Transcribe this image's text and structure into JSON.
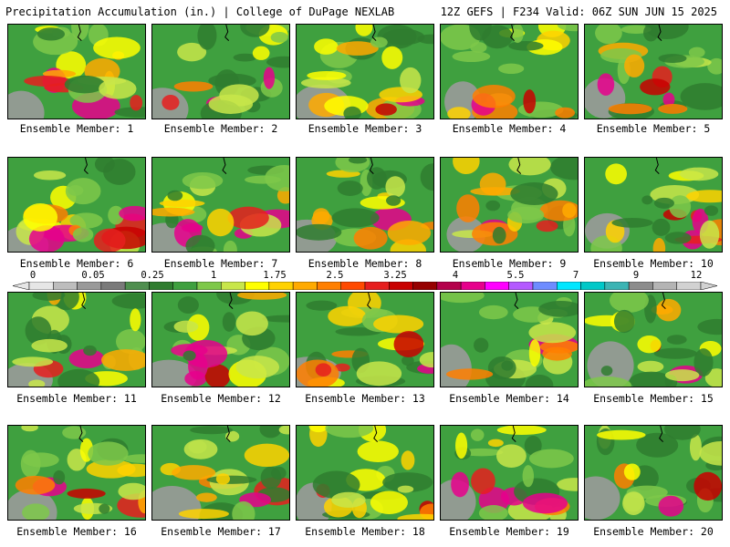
{
  "header": {
    "left_title": "Precipitation Accumulation (in.) | College of DuPage NEXLAB",
    "right_title": "12Z GEFS | F234 Valid: 06Z SUN JUN 15 2025"
  },
  "legend": {
    "tick_labels": [
      "0",
      "0.05",
      "0.25",
      "1",
      "1.75",
      "2.5",
      "3.25",
      "4",
      "5.5",
      "7",
      "9",
      "12"
    ],
    "colors": [
      "#e6e6e6",
      "#bdbdbd",
      "#9a9a9a",
      "#7a7a7a",
      "#4f8f4f",
      "#2f7d2f",
      "#3fa03f",
      "#7ec84a",
      "#c8e64a",
      "#ffff00",
      "#ffd200",
      "#ffaa00",
      "#ff7f00",
      "#ff4a00",
      "#e61e1e",
      "#c80000",
      "#960000",
      "#b4004b",
      "#e6008c",
      "#ff00ff",
      "#b45aff",
      "#6e8cff",
      "#00e6ff",
      "#00c8c8",
      "#3cb4b4",
      "#8c8c8c",
      "#b4b4b4",
      "#d2d2d2"
    ]
  },
  "members": [
    {
      "label": "Ensemble Member: 1"
    },
    {
      "label": "Ensemble Member: 2"
    },
    {
      "label": "Ensemble Member: 3"
    },
    {
      "label": "Ensemble Member: 4"
    },
    {
      "label": "Ensemble Member: 5"
    },
    {
      "label": "Ensemble Member: 6"
    },
    {
      "label": "Ensemble Member: 7"
    },
    {
      "label": "Ensemble Member: 8"
    },
    {
      "label": "Ensemble Member: 9"
    },
    {
      "label": "Ensemble Member: 10"
    },
    {
      "label": "Ensemble Member: 11"
    },
    {
      "label": "Ensemble Member: 12"
    },
    {
      "label": "Ensemble Member: 13"
    },
    {
      "label": "Ensemble Member: 14"
    },
    {
      "label": "Ensemble Member: 15"
    },
    {
      "label": "Ensemble Member: 16"
    },
    {
      "label": "Ensemble Member: 17"
    },
    {
      "label": "Ensemble Member: 18"
    },
    {
      "label": "Ensemble Member: 19"
    },
    {
      "label": "Ensemble Member: 20"
    }
  ]
}
